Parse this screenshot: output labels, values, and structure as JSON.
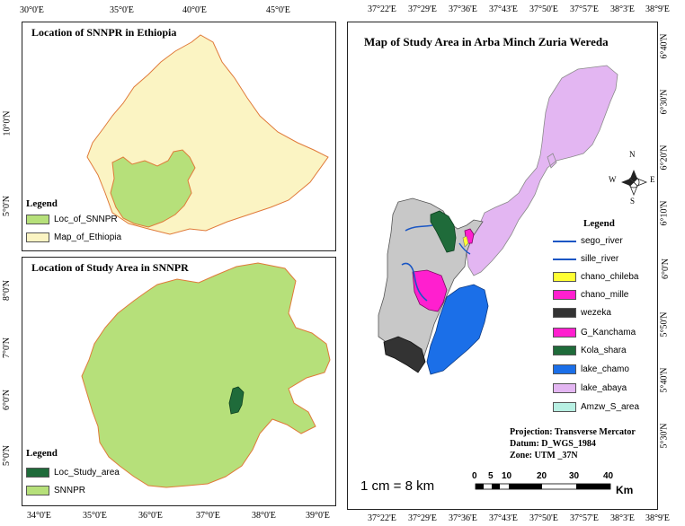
{
  "left_top": {
    "title": "Location of SNNPR in Ethiopia",
    "top_ticks": [
      "30°0'E",
      "35°0'E",
      "40°0'E",
      "45°0'E"
    ],
    "left_ticks": [
      "10°0'N",
      "5°0'N"
    ],
    "legend_title": "Legend",
    "legend": [
      {
        "label": "Loc_of_SNNPR",
        "color": "#b6e07a"
      },
      {
        "label": "Map_of_Ethiopia",
        "color": "#fbf4c3"
      }
    ]
  },
  "left_bottom": {
    "title": "Location of Study Area in SNNPR",
    "bottom_ticks": [
      "34°0'E",
      "35°0'E",
      "36°0'E",
      "37°0'E",
      "38°0'E",
      "39°0'E"
    ],
    "left_ticks": [
      "8°0'N",
      "7°0'N",
      "6°0'N",
      "5°0'N"
    ],
    "legend_title": "Legend",
    "legend": [
      {
        "label": "Loc_Study_area",
        "color": "#1f6b3a"
      },
      {
        "label": "SNNPR",
        "color": "#b6e07a"
      }
    ]
  },
  "right": {
    "title": "Map of Study Area in Arba Minch Zuria Wereda",
    "top_ticks": [
      "37°22'E",
      "37°29'E",
      "37°36'E",
      "37°43'E",
      "37°50'E",
      "37°57'E",
      "38°3'E",
      "38°9'E"
    ],
    "bottom_ticks": [
      "37°22'E",
      "37°29'E",
      "37°36'E",
      "37°43'E",
      "37°50'E",
      "37°57'E",
      "38°3'E",
      "38°9'E"
    ],
    "right_ticks": [
      "6°40'N",
      "6°30'N",
      "6°20'N",
      "6°10'N",
      "6°0'N",
      "5°50'N",
      "5°40'N",
      "5°30'N"
    ],
    "legend_title": "Legend",
    "legend": [
      {
        "label": "sego_river",
        "type": "line",
        "color": "#1a56c4"
      },
      {
        "label": "sille_river",
        "type": "line",
        "color": "#1a56c4"
      },
      {
        "label": "chano_chileba",
        "type": "fill",
        "color": "#ffff33"
      },
      {
        "label": "chano_mille",
        "type": "fill",
        "color": "#ff1fcf"
      },
      {
        "label": "wezeka",
        "type": "fill",
        "color": "#333333"
      },
      {
        "label": "G_Kanchama",
        "type": "fill",
        "color": "#ff1fcf"
      },
      {
        "label": "Kola_shara",
        "type": "fill",
        "color": "#1f6b3a"
      },
      {
        "label": "lake_chamo",
        "type": "fill",
        "color": "#1b6fe8"
      },
      {
        "label": "lake_abaya",
        "type": "fill",
        "color": "#e3b6f2"
      },
      {
        "label": "Amzw_S_area",
        "type": "fill",
        "color": "#b8f0e3"
      }
    ],
    "compass": {
      "n": "N",
      "s": "S",
      "e": "E",
      "w": "W"
    },
    "projection": {
      "line1": "Projection: Transverse Mercator",
      "line2": "Datum: D_WGS_1984",
      "line3": "Zone: UTM _37N"
    },
    "scale_text": "1 cm = 8 km",
    "scalebar": {
      "labels": [
        "0",
        "5",
        "10",
        "20",
        "30",
        "40"
      ],
      "unit": "Km"
    }
  },
  "colors": {
    "ethiopia": "#fbf4c3",
    "snnpr": "#b6e07a",
    "border": "#e07a3a",
    "gray_area": "#c8c8c8",
    "lake_abaya": "#e3b6f2",
    "lake_chamo": "#1b6fe8",
    "kola_shara": "#1f6b3a",
    "pink": "#ff1fcf",
    "wezeka": "#333333",
    "yellow": "#ffff33",
    "river": "#1a56c4"
  }
}
